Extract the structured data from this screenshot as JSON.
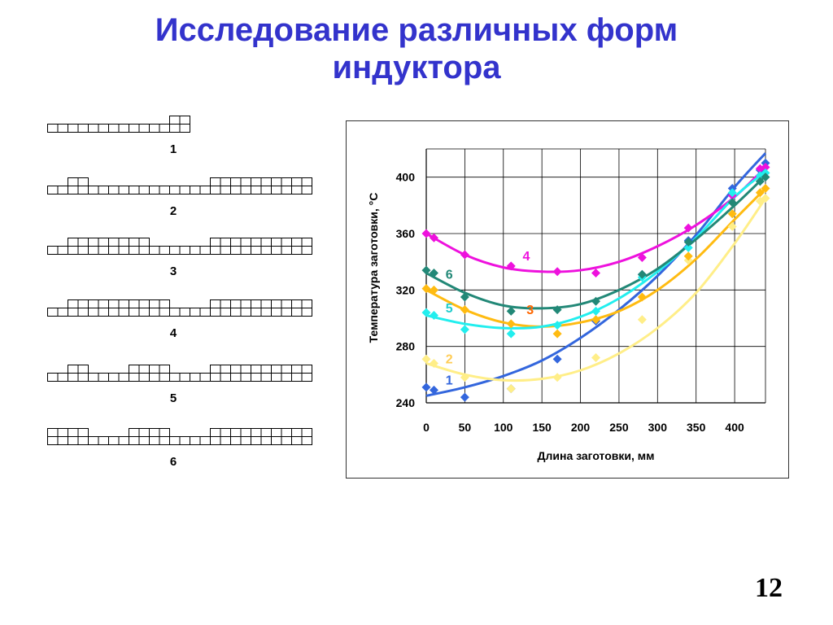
{
  "title": {
    "line1": "Исследование различных форм",
    "line2": "индуктора"
  },
  "inductors": [
    {
      "label": "1",
      "blocks": [
        [
          0,
          6,
          1
        ],
        [
          6,
          7,
          2
        ]
      ]
    },
    {
      "label": "2",
      "blocks": [
        [
          0,
          1,
          1
        ],
        [
          1,
          2,
          2
        ],
        [
          2,
          8,
          1
        ],
        [
          8,
          13,
          2
        ]
      ]
    },
    {
      "label": "3",
      "blocks": [
        [
          0,
          1,
          1
        ],
        [
          1,
          5,
          2
        ],
        [
          5,
          8,
          1
        ],
        [
          8,
          13,
          2
        ]
      ]
    },
    {
      "label": "4",
      "blocks": [
        [
          0,
          1,
          1
        ],
        [
          1,
          6,
          2
        ],
        [
          6,
          8,
          1
        ],
        [
          8,
          13,
          2
        ]
      ]
    },
    {
      "label": "5",
      "blocks": [
        [
          0,
          1,
          1
        ],
        [
          1,
          2,
          2
        ],
        [
          2,
          4,
          1
        ],
        [
          4,
          6,
          2
        ],
        [
          6,
          8,
          1
        ],
        [
          8,
          13,
          2
        ]
      ]
    },
    {
      "label": "6",
      "blocks": [
        [
          0,
          2,
          2
        ],
        [
          2,
          4,
          1
        ],
        [
          4,
          6,
          2
        ],
        [
          6,
          8,
          1
        ],
        [
          8,
          13,
          2
        ]
      ]
    }
  ],
  "chart_data": {
    "type": "scatter",
    "xlabel": "Длина заготовки, мм",
    "ylabel": "Температура заготовки, °C",
    "xlim": [
      0,
      440
    ],
    "ylim": [
      240,
      420
    ],
    "xticks": [
      0,
      50,
      100,
      150,
      200,
      250,
      300,
      350,
      400
    ],
    "yticks": [
      240,
      280,
      320,
      360,
      400
    ],
    "grid": true,
    "series": [
      {
        "name": "1",
        "color": "#3366dd",
        "points": [
          [
            0,
            251
          ],
          [
            10,
            249
          ],
          [
            50,
            244
          ],
          [
            110,
            250
          ],
          [
            170,
            271
          ],
          [
            220,
            298
          ],
          [
            280,
            331
          ],
          [
            340,
            355
          ],
          [
            397,
            392
          ],
          [
            433,
            405
          ],
          [
            440,
            410
          ]
        ],
        "curve": [
          [
            0,
            245
          ],
          [
            50,
            251
          ],
          [
            100,
            259
          ],
          [
            150,
            270
          ],
          [
            200,
            286
          ],
          [
            250,
            306
          ],
          [
            300,
            330
          ],
          [
            350,
            359
          ],
          [
            400,
            393
          ],
          [
            440,
            417
          ]
        ]
      },
      {
        "name": "2",
        "color": "#ffee88",
        "points": [
          [
            0,
            271
          ],
          [
            10,
            268
          ],
          [
            50,
            258
          ],
          [
            110,
            250
          ],
          [
            170,
            258
          ],
          [
            220,
            272
          ],
          [
            280,
            299
          ],
          [
            340,
            341
          ],
          [
            397,
            365
          ],
          [
            433,
            383
          ],
          [
            440,
            385
          ]
        ],
        "curve": [
          [
            0,
            268
          ],
          [
            50,
            260
          ],
          [
            100,
            256
          ],
          [
            150,
            257
          ],
          [
            200,
            263
          ],
          [
            250,
            275
          ],
          [
            300,
            293
          ],
          [
            350,
            318
          ],
          [
            400,
            353
          ],
          [
            440,
            385
          ]
        ]
      },
      {
        "name": "3",
        "color": "#ffbb11",
        "points": [
          [
            0,
            321
          ],
          [
            10,
            320
          ],
          [
            50,
            306
          ],
          [
            110,
            296
          ],
          [
            170,
            289
          ],
          [
            220,
            299
          ],
          [
            280,
            315
          ],
          [
            340,
            344
          ],
          [
            397,
            374
          ],
          [
            433,
            389
          ],
          [
            440,
            392
          ]
        ],
        "curve": [
          [
            0,
            320
          ],
          [
            50,
            306
          ],
          [
            100,
            297
          ],
          [
            150,
            294
          ],
          [
            200,
            297
          ],
          [
            250,
            305
          ],
          [
            300,
            320
          ],
          [
            350,
            342
          ],
          [
            400,
            370
          ],
          [
            440,
            392
          ]
        ]
      },
      {
        "name": "4",
        "color": "#ee11dd",
        "points": [
          [
            0,
            360
          ],
          [
            10,
            357
          ],
          [
            50,
            345
          ],
          [
            110,
            337
          ],
          [
            170,
            333
          ],
          [
            220,
            332
          ],
          [
            280,
            343
          ],
          [
            340,
            364
          ],
          [
            397,
            387
          ],
          [
            433,
            406
          ],
          [
            440,
            407
          ]
        ],
        "curve": [
          [
            0,
            360
          ],
          [
            50,
            345
          ],
          [
            100,
            336
          ],
          [
            150,
            333
          ],
          [
            200,
            334
          ],
          [
            250,
            340
          ],
          [
            300,
            351
          ],
          [
            350,
            366
          ],
          [
            400,
            386
          ],
          [
            440,
            407
          ]
        ]
      },
      {
        "name": "5",
        "color": "#22eeee",
        "points": [
          [
            0,
            304
          ],
          [
            10,
            302
          ],
          [
            50,
            292
          ],
          [
            110,
            289
          ],
          [
            170,
            295
          ],
          [
            220,
            305
          ],
          [
            280,
            329
          ],
          [
            340,
            350
          ],
          [
            397,
            389
          ],
          [
            433,
            401
          ],
          [
            440,
            403
          ]
        ],
        "curve": [
          [
            0,
            302
          ],
          [
            50,
            296
          ],
          [
            100,
            293
          ],
          [
            150,
            294
          ],
          [
            200,
            301
          ],
          [
            250,
            314
          ],
          [
            300,
            333
          ],
          [
            350,
            357
          ],
          [
            400,
            386
          ],
          [
            440,
            404
          ]
        ]
      },
      {
        "name": "6",
        "color": "#228877",
        "points": [
          [
            0,
            334
          ],
          [
            10,
            332
          ],
          [
            50,
            315
          ],
          [
            110,
            305
          ],
          [
            170,
            306
          ],
          [
            220,
            312
          ],
          [
            280,
            331
          ],
          [
            340,
            354
          ],
          [
            397,
            382
          ],
          [
            433,
            397
          ],
          [
            440,
            400
          ]
        ],
        "curve": [
          [
            0,
            332
          ],
          [
            50,
            318
          ],
          [
            100,
            309
          ],
          [
            150,
            307
          ],
          [
            200,
            310
          ],
          [
            250,
            320
          ],
          [
            300,
            335
          ],
          [
            350,
            356
          ],
          [
            400,
            380
          ],
          [
            440,
            401
          ]
        ]
      }
    ],
    "series_labels": [
      {
        "name": "1",
        "color": "#3366dd",
        "at": [
          25,
          253
        ]
      },
      {
        "name": "2",
        "color": "#ffcc55",
        "at": [
          25,
          268
        ]
      },
      {
        "name": "3",
        "color": "#ff6600",
        "at": [
          130,
          303
        ]
      },
      {
        "name": "4",
        "color": "#ee11dd",
        "at": [
          125,
          341
        ]
      },
      {
        "name": "5",
        "color": "#22cccc",
        "at": [
          25,
          304
        ]
      },
      {
        "name": "6",
        "color": "#228877",
        "at": [
          25,
          328
        ]
      }
    ]
  },
  "page_number": "12"
}
